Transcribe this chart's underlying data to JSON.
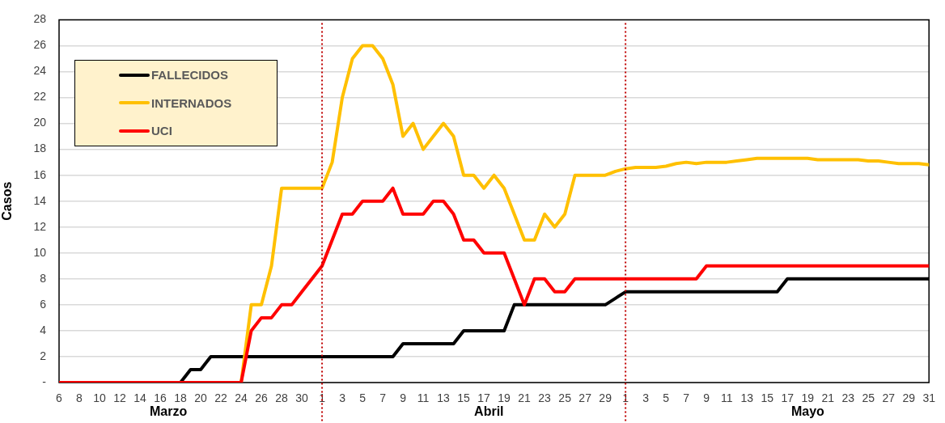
{
  "chart_data": {
    "type": "line",
    "ylabel": "Casos",
    "xlabel": "Marzo Abril Mayo",
    "x": [
      "--03-06",
      "--03-07",
      "--03-08",
      "--03-09",
      "--03-10",
      "--03-11",
      "--03-12",
      "--03-13",
      "--03-14",
      "--03-15",
      "--03-16",
      "--03-17",
      "--03-18",
      "--03-19",
      "--03-20",
      "--03-21",
      "--03-22",
      "--03-23",
      "--03-24",
      "--03-25",
      "--03-26",
      "--03-27",
      "--03-28",
      "--03-29",
      "--03-30",
      "--03-31",
      "--04-01",
      "--04-02",
      "--04-03",
      "--04-04",
      "--04-05",
      "--04-06",
      "--04-07",
      "--04-08",
      "--04-09",
      "--04-10",
      "--04-11",
      "--04-12",
      "--04-13",
      "--04-14",
      "--04-15",
      "--04-16",
      "--04-17",
      "--04-18",
      "--04-19",
      "--04-20",
      "--04-21",
      "--04-22",
      "--04-23",
      "--04-24",
      "--04-25",
      "--04-26",
      "--04-27",
      "--04-28",
      "--04-29",
      "--04-30",
      "--05-01",
      "--05-02",
      "--05-03",
      "--05-04",
      "--05-05",
      "--05-06",
      "--05-07",
      "--05-08",
      "--05-09",
      "--05-10",
      "--05-11",
      "--05-12",
      "--05-13",
      "--05-14",
      "--05-15",
      "--05-16",
      "--05-17",
      "--05-18",
      "--05-19",
      "--05-20",
      "--05-21",
      "--05-22",
      "--05-23",
      "--05-24",
      "--05-25",
      "--05-26",
      "--05-27",
      "--05-28",
      "--05-29",
      "--05-30",
      "--05-31"
    ],
    "series": [
      {
        "name": "FALLECIDOS",
        "color": "#000000",
        "values": [
          0,
          0,
          0,
          0,
          0,
          0,
          0,
          0,
          0,
          0,
          0,
          0,
          0,
          1,
          1,
          2,
          2,
          2,
          2,
          2,
          2,
          2,
          2,
          2,
          2,
          2,
          2,
          2,
          2,
          2,
          2,
          2,
          2,
          2,
          3,
          3,
          3,
          3,
          3,
          3,
          4,
          4,
          4,
          4,
          4,
          6,
          6,
          6,
          6,
          6,
          6,
          6,
          6,
          6,
          6,
          6.5,
          7,
          7,
          7,
          7,
          7,
          7,
          7,
          7,
          7,
          7,
          7,
          7,
          7,
          7,
          7,
          7,
          8,
          8,
          8,
          8,
          8,
          8,
          8,
          8,
          8,
          8,
          8,
          8,
          8,
          8,
          8
        ]
      },
      {
        "name": "INTERNADOS",
        "color": "#ffc000",
        "values": [
          null,
          null,
          null,
          null,
          null,
          null,
          null,
          null,
          null,
          null,
          null,
          null,
          null,
          null,
          null,
          null,
          null,
          0,
          0,
          6,
          6,
          9,
          15,
          15,
          15,
          15,
          15,
          17,
          22,
          25,
          26,
          26,
          25,
          23,
          19,
          20,
          18,
          19,
          20,
          19,
          16,
          16,
          15,
          16,
          15,
          13,
          11,
          11,
          13,
          12,
          13,
          16,
          16,
          16,
          16,
          16.3,
          16.5,
          16.6,
          16.6,
          16.6,
          16.7,
          16.9,
          17,
          16.9,
          17,
          17,
          17,
          17.1,
          17.2,
          17.3,
          17.3,
          17.3,
          17.3,
          17.3,
          17.3,
          17.2,
          17.2,
          17.2,
          17.2,
          17.2,
          17.1,
          17.1,
          17,
          16.9,
          16.9,
          16.9,
          16.8
        ]
      },
      {
        "name": "UCI",
        "color": "#ff0000",
        "values": [
          0,
          0,
          0,
          0,
          0,
          0,
          0,
          0,
          0,
          0,
          0,
          0,
          0,
          0,
          0,
          0,
          0,
          0,
          0,
          4,
          5,
          5,
          6,
          6,
          7,
          8,
          9,
          11,
          13,
          13,
          14,
          14,
          14,
          15,
          13,
          13,
          13,
          14,
          14,
          13,
          11,
          11,
          10,
          10,
          10,
          8,
          6,
          8,
          8,
          7,
          7,
          8,
          8,
          8,
          8,
          8,
          8,
          8,
          8,
          8,
          8,
          8,
          8,
          8,
          9,
          9,
          9,
          9,
          9,
          9,
          9,
          9,
          9,
          9,
          9,
          9,
          9,
          9,
          9,
          9,
          9,
          9,
          9,
          9,
          9,
          9,
          9
        ]
      }
    ],
    "xlim": [
      "--03-06",
      "--05-31"
    ],
    "xticks": [
      {
        "value": "--03-06",
        "label": "6"
      },
      {
        "value": "--03-08",
        "label": "8"
      },
      {
        "value": "--03-10",
        "label": "10"
      },
      {
        "value": "--03-12",
        "label": "12"
      },
      {
        "value": "--03-14",
        "label": "14"
      },
      {
        "value": "--03-16",
        "label": "16"
      },
      {
        "value": "--03-18",
        "label": "18"
      },
      {
        "value": "--03-20",
        "label": "20"
      },
      {
        "value": "--03-22",
        "label": "22"
      },
      {
        "value": "--03-24",
        "label": "24"
      },
      {
        "value": "--03-26",
        "label": "26"
      },
      {
        "value": "--03-28",
        "label": "28"
      },
      {
        "value": "--03-30",
        "label": "30"
      },
      {
        "value": "--04-01",
        "label": "1"
      },
      {
        "value": "--04-03",
        "label": "3"
      },
      {
        "value": "--04-05",
        "label": "5"
      },
      {
        "value": "--04-07",
        "label": "7"
      },
      {
        "value": "--04-09",
        "label": "9"
      },
      {
        "value": "--04-11",
        "label": "11"
      },
      {
        "value": "--04-13",
        "label": "13"
      },
      {
        "value": "--04-15",
        "label": "15"
      },
      {
        "value": "--04-17",
        "label": "17"
      },
      {
        "value": "--04-19",
        "label": "19"
      },
      {
        "value": "--04-21",
        "label": "21"
      },
      {
        "value": "--04-23",
        "label": "23"
      },
      {
        "value": "--04-25",
        "label": "25"
      },
      {
        "value": "--04-27",
        "label": "27"
      },
      {
        "value": "--04-29",
        "label": "29"
      },
      {
        "value": "--05-01",
        "label": "1"
      },
      {
        "value": "--05-03",
        "label": "3"
      },
      {
        "value": "--05-05",
        "label": "5"
      },
      {
        "value": "--05-07",
        "label": "7"
      },
      {
        "value": "--05-09",
        "label": "9"
      },
      {
        "value": "--05-11",
        "label": "11"
      },
      {
        "value": "--05-13",
        "label": "13"
      },
      {
        "value": "--05-15",
        "label": "15"
      },
      {
        "value": "--05-17",
        "label": "17"
      },
      {
        "value": "--05-19",
        "label": "19"
      },
      {
        "value": "--05-21",
        "label": "21"
      },
      {
        "value": "--05-23",
        "label": "23"
      },
      {
        "value": "--05-25",
        "label": "25"
      },
      {
        "value": "--05-27",
        "label": "27"
      },
      {
        "value": "--05-29",
        "label": "29"
      },
      {
        "value": "--05-31",
        "label": "31"
      }
    ],
    "ylim": [
      0,
      28
    ],
    "yticks": [
      {
        "value": 0,
        "label": "-"
      },
      2,
      4,
      6,
      8,
      10,
      12,
      14,
      16,
      18,
      20,
      22,
      24,
      26,
      28
    ],
    "ref_lines": [
      {
        "axis": "x",
        "value": "--04-01",
        "color": "#c00000",
        "line_style": "dotted"
      },
      {
        "axis": "x",
        "value": "--05-01",
        "color": "#c00000",
        "line_style": "dotted"
      }
    ],
    "grid": "y",
    "legend": "top left"
  }
}
